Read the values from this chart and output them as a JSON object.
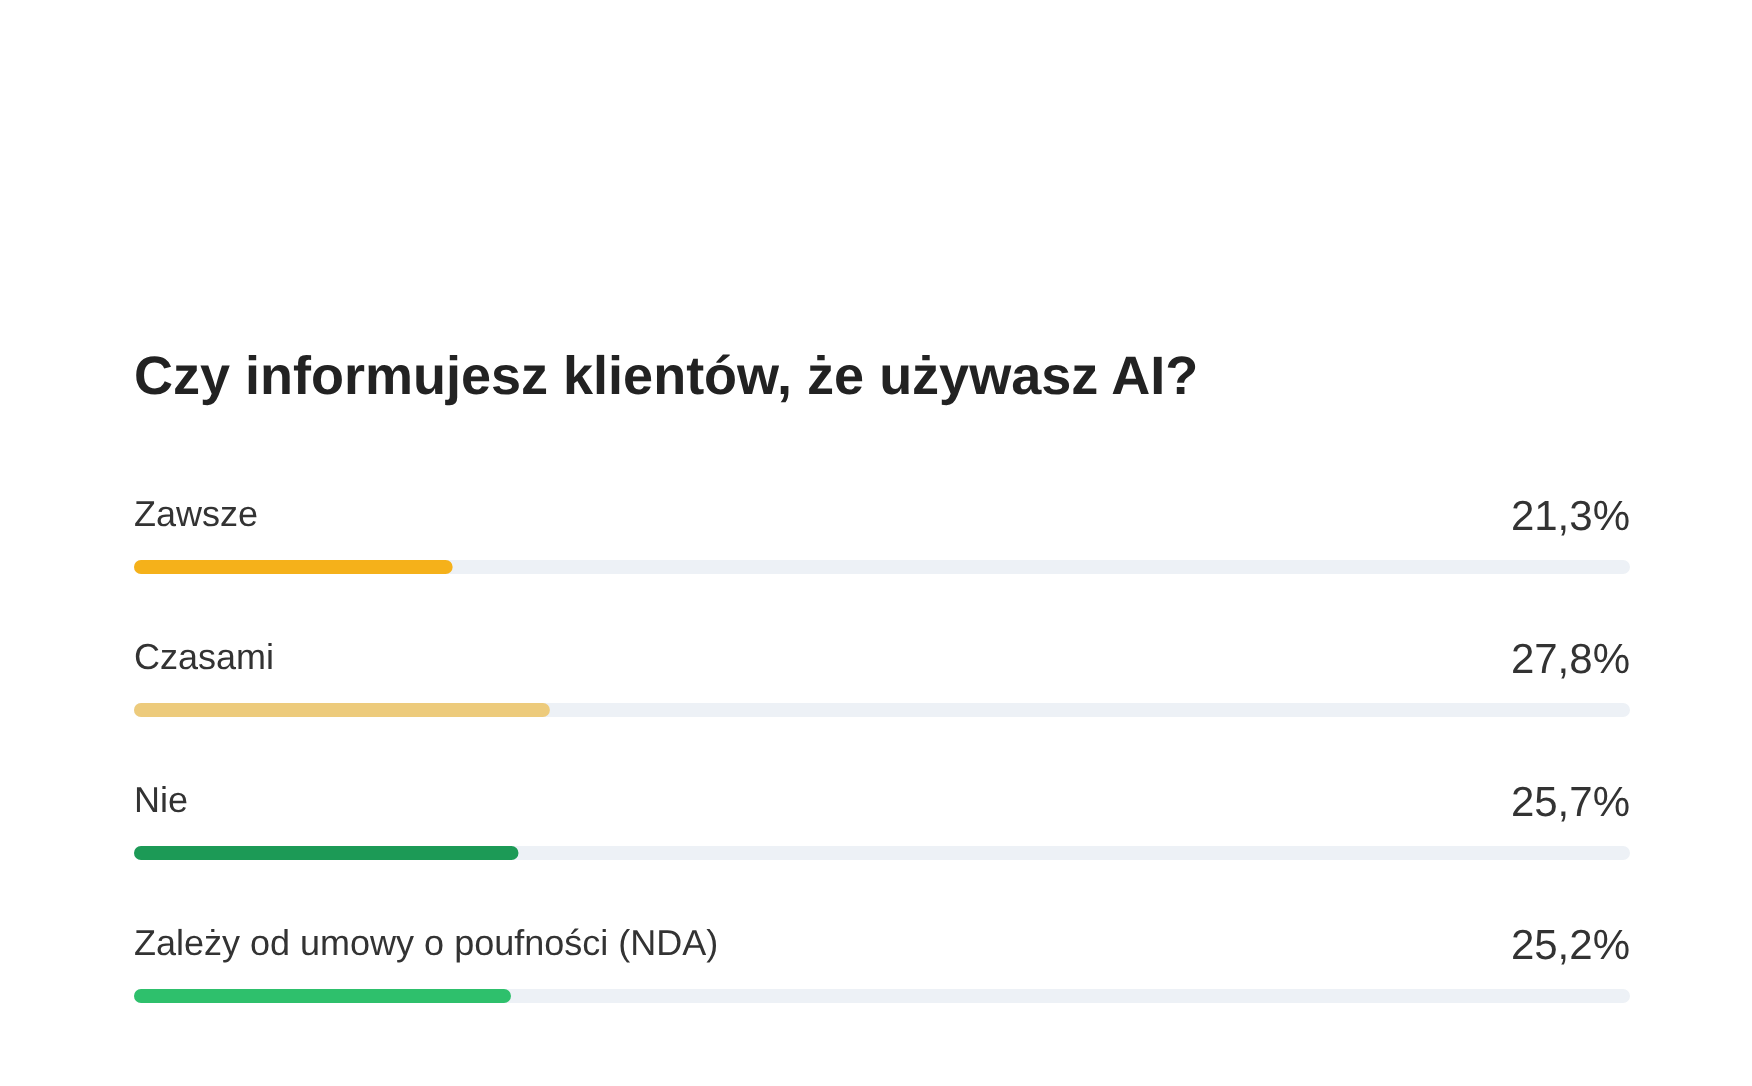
{
  "chart_data": {
    "type": "bar",
    "orientation": "horizontal",
    "title": "Czy informujesz klientów, że używasz AI?",
    "categories": [
      "Zawsze",
      "Czasami",
      "Nie",
      "Zależy od umowy o poufności (NDA)"
    ],
    "values": [
      21.3,
      27.8,
      25.7,
      25.2
    ],
    "colors": [
      "#f5b11a",
      "#edcb7c",
      "#1c9a56",
      "#2ec06c"
    ],
    "value_labels": [
      "21,3%",
      "27,8%",
      "25,7%",
      "25,2%"
    ],
    "xlim": [
      0,
      100
    ],
    "tick_labels": false
  }
}
